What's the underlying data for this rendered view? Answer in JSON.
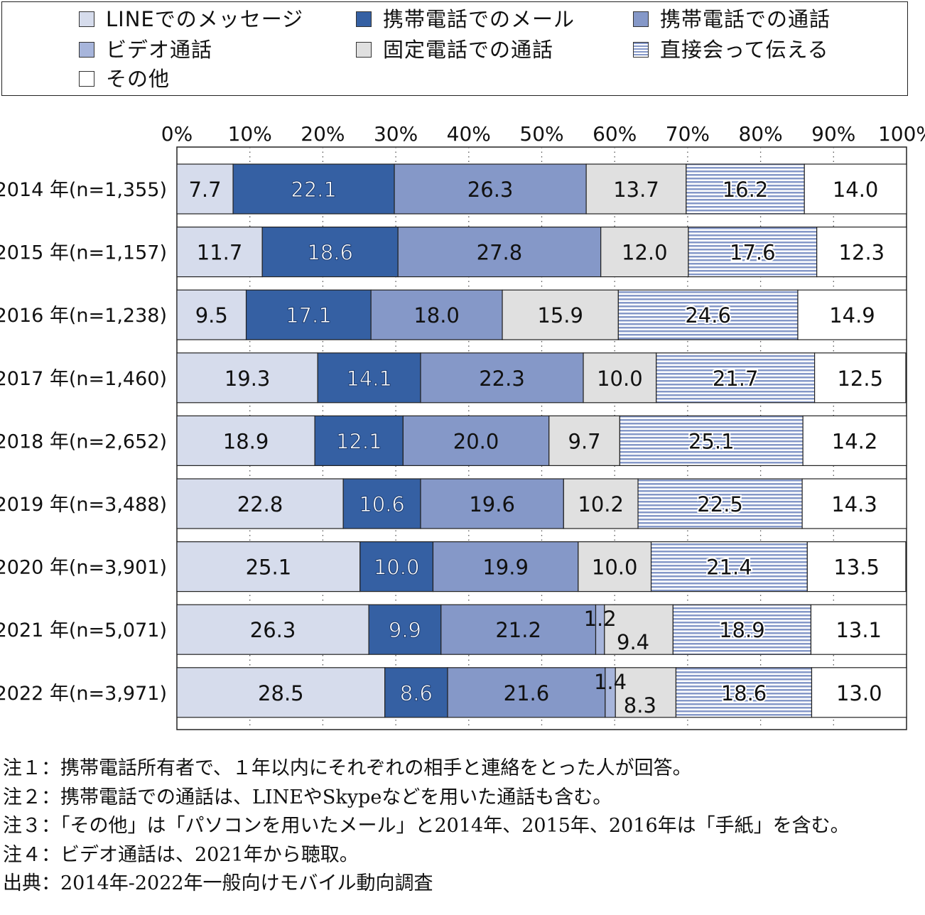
{
  "legend": {
    "items": [
      {
        "label": "LINEでのメッセージ",
        "fill": "#d6dcec"
      },
      {
        "label": "携帯電話でのメール",
        "fill": "#3560a3"
      },
      {
        "label": "携帯電話での通話",
        "fill": "#8598c8"
      },
      {
        "label": "ビデオ通話",
        "fill": "#a7b5db"
      },
      {
        "label": "固定電話での通話",
        "fill": "#e0e0e0"
      },
      {
        "label": "直接会って伝える",
        "fill": "striped"
      },
      {
        "label": "その他",
        "fill": "#ffffff"
      }
    ]
  },
  "chart_data": {
    "type": "bar",
    "orientation": "horizontal",
    "stacked": "percent",
    "xlim": [
      0,
      100
    ],
    "x_ticks": [
      "0%",
      "10%",
      "20%",
      "30%",
      "40%",
      "50%",
      "60%",
      "70%",
      "80%",
      "90%",
      "100%"
    ],
    "categories": [
      "2014 年(n=1,355)",
      "2015 年(n=1,157)",
      "2016 年(n=1,238)",
      "2017 年(n=1,460)",
      "2018 年(n=2,652)",
      "2019 年(n=3,488)",
      "2020 年(n=3,901)",
      "2021 年(n=5,071)",
      "2022 年(n=3,971)"
    ],
    "series": [
      {
        "name": "LINEでのメッセージ",
        "values": [
          7.7,
          11.7,
          9.5,
          19.3,
          18.9,
          22.8,
          25.1,
          26.3,
          28.5
        ],
        "labels": [
          "7.7",
          "11.7",
          "9.5",
          "19.3",
          "18.9",
          "22.8",
          "25.1",
          "26.3",
          "28.5"
        ]
      },
      {
        "name": "携帯電話でのメール",
        "values": [
          22.1,
          18.6,
          17.1,
          14.1,
          12.1,
          10.6,
          10.0,
          9.9,
          8.6
        ],
        "labels": [
          "22.1",
          "18.6",
          "17.1",
          "14.1",
          "12.1",
          "10.6",
          "10.0",
          "9.9",
          "8.6"
        ]
      },
      {
        "name": "携帯電話での通話",
        "values": [
          26.3,
          27.8,
          18.0,
          22.3,
          20.0,
          19.6,
          19.9,
          21.2,
          21.6
        ],
        "labels": [
          "26.3",
          "27.8",
          "18.0",
          "22.3",
          "20.0",
          "19.6",
          "19.9",
          "21.2",
          "21.6"
        ]
      },
      {
        "name": "ビデオ通話",
        "values": [
          0,
          0,
          0,
          0,
          0,
          0,
          0,
          1.2,
          1.4
        ],
        "labels": [
          "",
          "",
          "",
          "",
          "",
          "",
          "",
          "1.2",
          "1.4"
        ]
      },
      {
        "name": "固定電話での通話",
        "values": [
          13.7,
          12.0,
          15.9,
          10.0,
          9.7,
          10.2,
          10.0,
          9.4,
          8.3
        ],
        "labels": [
          "13.7",
          "12.0",
          "15.9",
          "10.0",
          "9.7",
          "10.2",
          "10.0",
          "9.4",
          "8.3"
        ]
      },
      {
        "name": "直接会って伝える",
        "values": [
          16.2,
          17.6,
          24.6,
          21.7,
          25.1,
          22.5,
          21.4,
          18.9,
          18.6
        ],
        "labels": [
          "16.2",
          "17.6",
          "24.6",
          "21.7",
          "25.1",
          "22.5",
          "21.4",
          "18.9",
          "18.6"
        ]
      },
      {
        "name": "その他",
        "values": [
          14.0,
          12.3,
          14.9,
          12.5,
          14.2,
          14.3,
          13.5,
          13.1,
          13.0
        ],
        "labels": [
          "14.0",
          "12.3",
          "14.9",
          "12.5",
          "14.2",
          "14.3",
          "13.5",
          "13.1",
          "13.0"
        ]
      }
    ]
  },
  "notes": [
    "注１：携帯電話所有者で、１年以内にそれぞれの相手と連絡をとった人が回答。",
    "注２：携帯電話での通話は、LINEやSkypeなどを用いた通話も含む。",
    "注３：「その他」は「パソコンを用いたメール」と2014年、2015年、2016年は「手紙」を含む。",
    "注４：ビデオ通話は、2021年から聴取。",
    "出典：2014年-2022年一般向けモバイル動向調査"
  ]
}
